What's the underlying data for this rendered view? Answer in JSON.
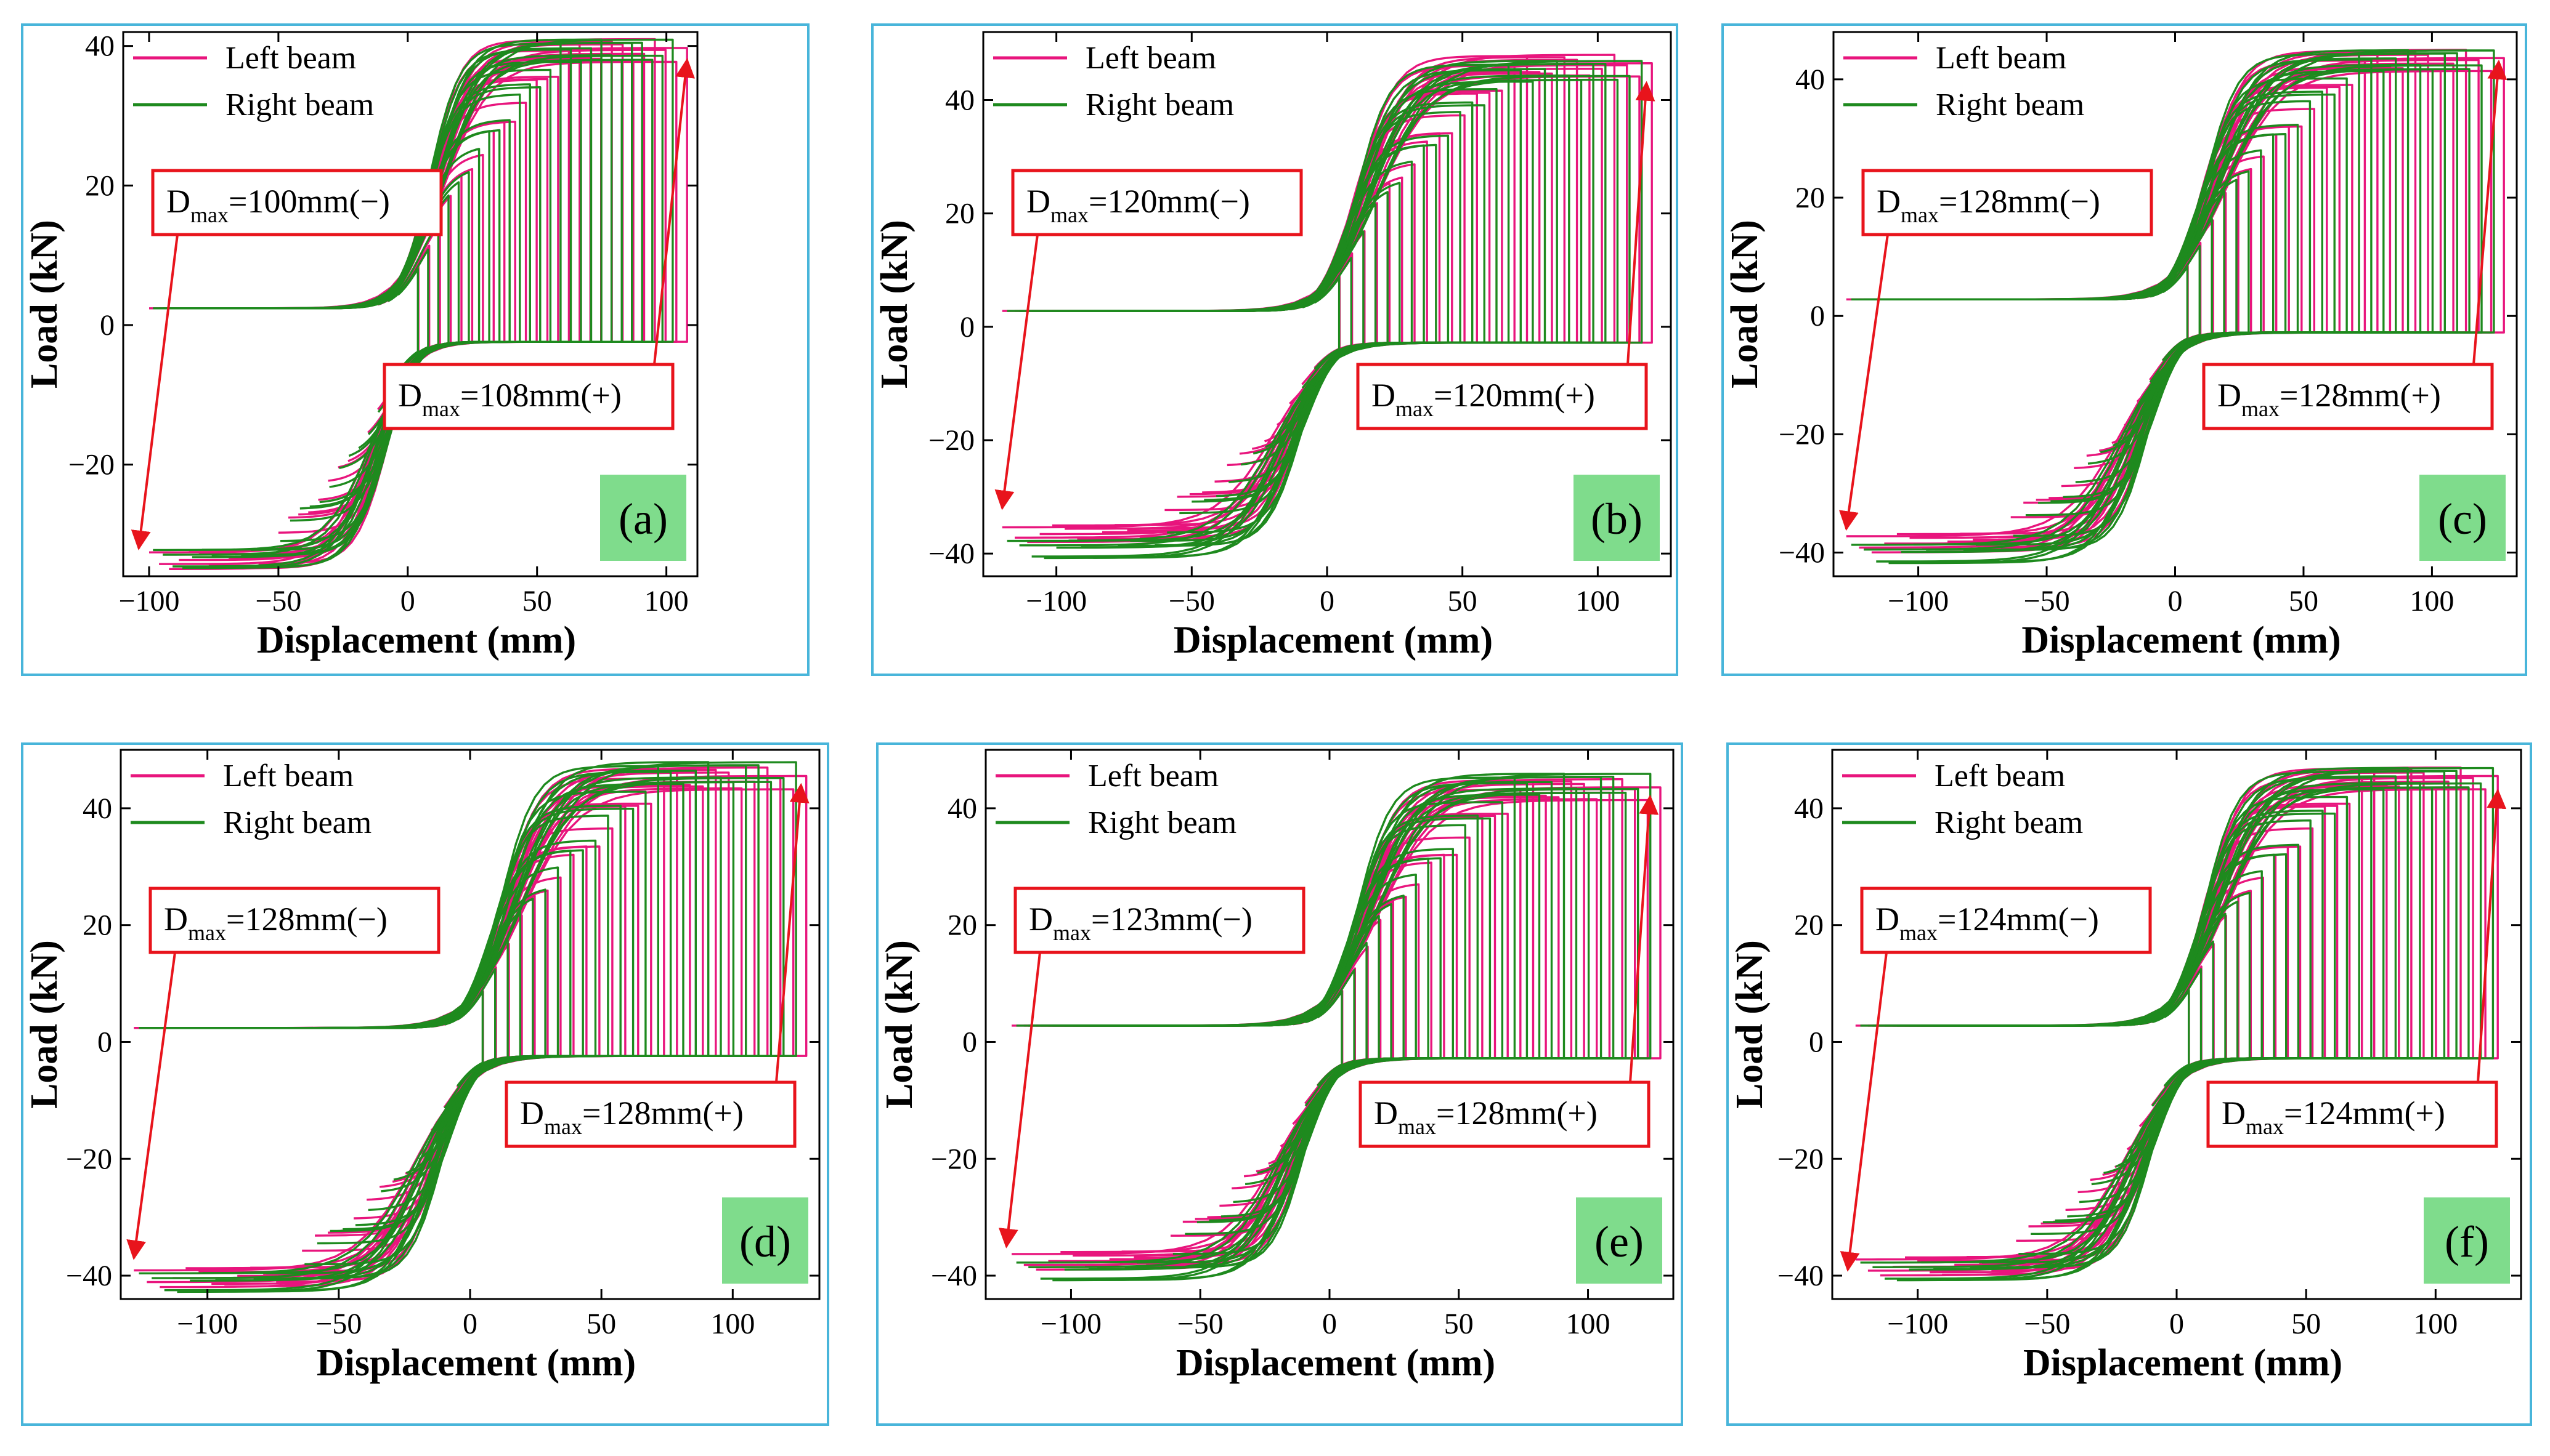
{
  "figure": {
    "colors": {
      "left_beam": "#e8157d",
      "right_beam": "#1e8a1e",
      "annotation": "#e8141c",
      "panel_tag_bg": "#7fdc8c",
      "panel_border": "#48b5da"
    }
  },
  "chart_data": [
    {
      "type": "line",
      "panel_label": "(a)",
      "xlabel": "Displacement (mm)",
      "ylabel": "Load (kN)",
      "xlim": [
        -110,
        112
      ],
      "ylim": [
        -36,
        42
      ],
      "xticks": [
        -100,
        -50,
        0,
        50,
        100
      ],
      "yticks": [
        -20,
        0,
        20,
        40
      ],
      "tick_labels": {
        "x": [
          "−100",
          "−50",
          "0",
          "50",
          "100"
        ],
        "y": [
          "−20",
          "0",
          "20",
          "40"
        ]
      },
      "legend": [
        "Left beam",
        "Right beam"
      ],
      "annotations": {
        "neg": {
          "prefix": "D",
          "sub": "max",
          "text": "=100mm(−)",
          "arrow_to": [
            -104,
            -32
          ]
        },
        "pos": {
          "prefix": "D",
          "sub": "max",
          "text": "=108mm(+)",
          "arrow_to": [
            108,
            38
          ]
        }
      },
      "series": [
        {
          "name": "Left beam",
          "envelope": {
            "neg_peak_load": -35,
            "pos_peak_load": 41,
            "neg_max_disp": -100,
            "pos_max_disp": 108,
            "plateau_load": 6,
            "yield_disp": 20
          }
        },
        {
          "name": "Right beam",
          "envelope": {
            "neg_peak_load": -35,
            "pos_peak_load": 41,
            "neg_max_disp": -100,
            "pos_max_disp": 104,
            "plateau_load": 6,
            "yield_disp": 20
          }
        }
      ]
    },
    {
      "type": "line",
      "panel_label": "(b)",
      "xlabel": "Displacement (mm)",
      "ylabel": "Load (kN)",
      "xlim": [
        -127,
        127
      ],
      "ylim": [
        -44,
        52
      ],
      "xticks": [
        -100,
        -50,
        0,
        50,
        100
      ],
      "yticks": [
        -40,
        -20,
        0,
        20,
        40
      ],
      "tick_labels": {
        "x": [
          "−100",
          "−50",
          "0",
          "50",
          "100"
        ],
        "y": [
          "−40",
          "−20",
          "0",
          "20",
          "40"
        ]
      },
      "legend": [
        "Left beam",
        "Right beam"
      ],
      "annotations": {
        "neg": {
          "prefix": "D",
          "sub": "max",
          "text": "=120mm(−)",
          "arrow_to": [
            -120,
            -32
          ]
        },
        "pos": {
          "prefix": "D",
          "sub": "max",
          "text": "=120mm(+)",
          "arrow_to": [
            118,
            43
          ]
        }
      },
      "series": [
        {
          "name": "Left beam",
          "envelope": {
            "neg_peak_load": -38,
            "pos_peak_load": 48,
            "neg_max_disp": -120,
            "pos_max_disp": 120,
            "plateau_load": 7,
            "yield_disp": 28
          }
        },
        {
          "name": "Right beam",
          "envelope": {
            "neg_peak_load": -41,
            "pos_peak_load": 47,
            "neg_max_disp": -120,
            "pos_max_disp": 118,
            "plateau_load": 7,
            "yield_disp": 28
          }
        }
      ]
    },
    {
      "type": "line",
      "panel_label": "(c)",
      "xlabel": "Displacement (mm)",
      "ylabel": "Load (kN)",
      "xlim": [
        -133,
        133
      ],
      "ylim": [
        -44,
        48
      ],
      "xticks": [
        -100,
        -50,
        0,
        50,
        100
      ],
      "yticks": [
        -40,
        -20,
        0,
        20,
        40
      ],
      "tick_labels": {
        "x": [
          "−100",
          "−50",
          "0",
          "50",
          "100"
        ],
        "y": [
          "−40",
          "−20",
          "0",
          "20",
          "40"
        ]
      },
      "legend": [
        "Left beam",
        "Right beam"
      ],
      "annotations": {
        "neg": {
          "prefix": "D",
          "sub": "max",
          "text": "=128mm(−)",
          "arrow_to": [
            -128,
            -36
          ]
        },
        "pos": {
          "prefix": "D",
          "sub": "max",
          "text": "=128mm(+)",
          "arrow_to": [
            126,
            43
          ]
        }
      },
      "series": [
        {
          "name": "Left beam",
          "envelope": {
            "neg_peak_load": -40,
            "pos_peak_load": 45,
            "neg_max_disp": -128,
            "pos_max_disp": 128,
            "plateau_load": 7,
            "yield_disp": 30
          }
        },
        {
          "name": "Right beam",
          "envelope": {
            "neg_peak_load": -42,
            "pos_peak_load": 45,
            "neg_max_disp": -128,
            "pos_max_disp": 126,
            "plateau_load": 7,
            "yield_disp": 30
          }
        }
      ]
    },
    {
      "type": "line",
      "panel_label": "(d)",
      "xlabel": "Displacement (mm)",
      "ylabel": "Load (kN)",
      "xlim": [
        -133,
        133
      ],
      "ylim": [
        -44,
        50
      ],
      "xticks": [
        -100,
        -50,
        0,
        50,
        100
      ],
      "yticks": [
        -40,
        -20,
        0,
        20,
        40
      ],
      "tick_labels": {
        "x": [
          "−100",
          "−50",
          "0",
          "50",
          "100"
        ],
        "y": [
          "−40",
          "−20",
          "0",
          "20",
          "40"
        ]
      },
      "legend": [
        "Left beam",
        "Right beam"
      ],
      "annotations": {
        "neg": {
          "prefix": "D",
          "sub": "max",
          "text": "=128mm(−)",
          "arrow_to": [
            -128,
            -37
          ]
        },
        "pos": {
          "prefix": "D",
          "sub": "max",
          "text": "=128mm(+)",
          "arrow_to": [
            126,
            44
          ]
        }
      },
      "series": [
        {
          "name": "Left beam",
          "envelope": {
            "neg_peak_load": -42,
            "pos_peak_load": 47,
            "neg_max_disp": -128,
            "pos_max_disp": 128,
            "plateau_load": 6,
            "yield_disp": 30
          }
        },
        {
          "name": "Right beam",
          "envelope": {
            "neg_peak_load": -43,
            "pos_peak_load": 48,
            "neg_max_disp": -128,
            "pos_max_disp": 126,
            "plateau_load": 6,
            "yield_disp": 30
          }
        }
      ]
    },
    {
      "type": "line",
      "panel_label": "(e)",
      "xlabel": "Displacement (mm)",
      "ylabel": "Load (kN)",
      "xlim": [
        -133,
        133
      ],
      "ylim": [
        -44,
        50
      ],
      "xticks": [
        -100,
        -50,
        0,
        50,
        100
      ],
      "yticks": [
        -40,
        -20,
        0,
        20,
        40
      ],
      "tick_labels": {
        "x": [
          "−100",
          "−50",
          "0",
          "50",
          "100"
        ],
        "y": [
          "−40",
          "−20",
          "0",
          "20",
          "40"
        ]
      },
      "legend": [
        "Left beam",
        "Right beam"
      ],
      "annotations": {
        "neg": {
          "prefix": "D",
          "sub": "max",
          "text": "=123mm(−)",
          "arrow_to": [
            -125,
            -35
          ]
        },
        "pos": {
          "prefix": "D",
          "sub": "max",
          "text": "=128mm(+)",
          "arrow_to": [
            124,
            42
          ]
        }
      },
      "series": [
        {
          "name": "Left beam",
          "envelope": {
            "neg_peak_load": -39,
            "pos_peak_load": 45,
            "neg_max_disp": -123,
            "pos_max_disp": 128,
            "plateau_load": 7,
            "yield_disp": 28
          }
        },
        {
          "name": "Right beam",
          "envelope": {
            "neg_peak_load": -41,
            "pos_peak_load": 46,
            "neg_max_disp": -123,
            "pos_max_disp": 126,
            "plateau_load": 7,
            "yield_disp": 28
          }
        }
      ]
    },
    {
      "type": "line",
      "panel_label": "(f)",
      "xlabel": "Displacement (mm)",
      "ylabel": "Load (kN)",
      "xlim": [
        -133,
        133
      ],
      "ylim": [
        -44,
        50
      ],
      "xticks": [
        -100,
        -50,
        0,
        50,
        100
      ],
      "yticks": [
        -40,
        -20,
        0,
        20,
        40
      ],
      "tick_labels": {
        "x": [
          "−100",
          "−50",
          "0",
          "50",
          "100"
        ],
        "y": [
          "−40",
          "−20",
          "0",
          "20",
          "40"
        ]
      },
      "legend": [
        "Left beam",
        "Right beam"
      ],
      "annotations": {
        "neg": {
          "prefix": "D",
          "sub": "max",
          "text": "=124mm(−)",
          "arrow_to": [
            -127,
            -39
          ]
        },
        "pos": {
          "prefix": "D",
          "sub": "max",
          "text": "=124mm(+)",
          "arrow_to": [
            124,
            43
          ]
        }
      },
      "series": [
        {
          "name": "Left beam",
          "envelope": {
            "neg_peak_load": -40,
            "pos_peak_load": 47,
            "neg_max_disp": -124,
            "pos_max_disp": 124,
            "plateau_load": 7,
            "yield_disp": 28
          }
        },
        {
          "name": "Right beam",
          "envelope": {
            "neg_peak_load": -41,
            "pos_peak_load": 47,
            "neg_max_disp": -124,
            "pos_max_disp": 124,
            "plateau_load": 7,
            "yield_disp": 28
          }
        }
      ]
    }
  ]
}
